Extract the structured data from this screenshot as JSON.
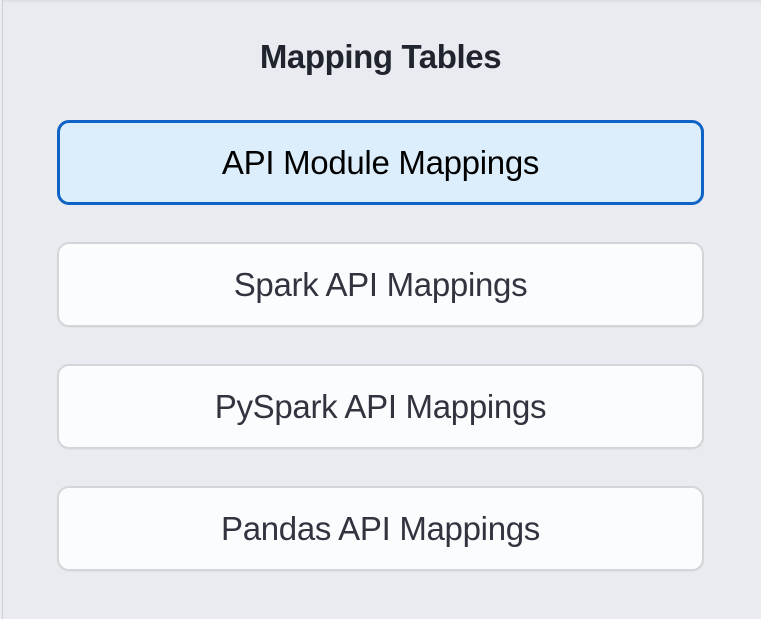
{
  "panel": {
    "title": "Mapping Tables"
  },
  "nav": {
    "buttons": [
      {
        "label": "API Module Mappings",
        "state": "selected"
      },
      {
        "label": "Spark API Mappings",
        "state": "default"
      },
      {
        "label": "PySpark API Mappings",
        "state": "default"
      },
      {
        "label": "Pandas API Mappings",
        "state": "default"
      }
    ]
  },
  "colors": {
    "page_background": "#eaebf0",
    "selected_button_background": "#dceefb",
    "selected_button_border": "#0e63c5",
    "selected_button_text": "#000000",
    "button_background": "#fbfcfd",
    "button_border": "#d3d5d9",
    "button_text": "#31333f",
    "title_text": "#20242e",
    "edge_line": "#ccced5"
  }
}
